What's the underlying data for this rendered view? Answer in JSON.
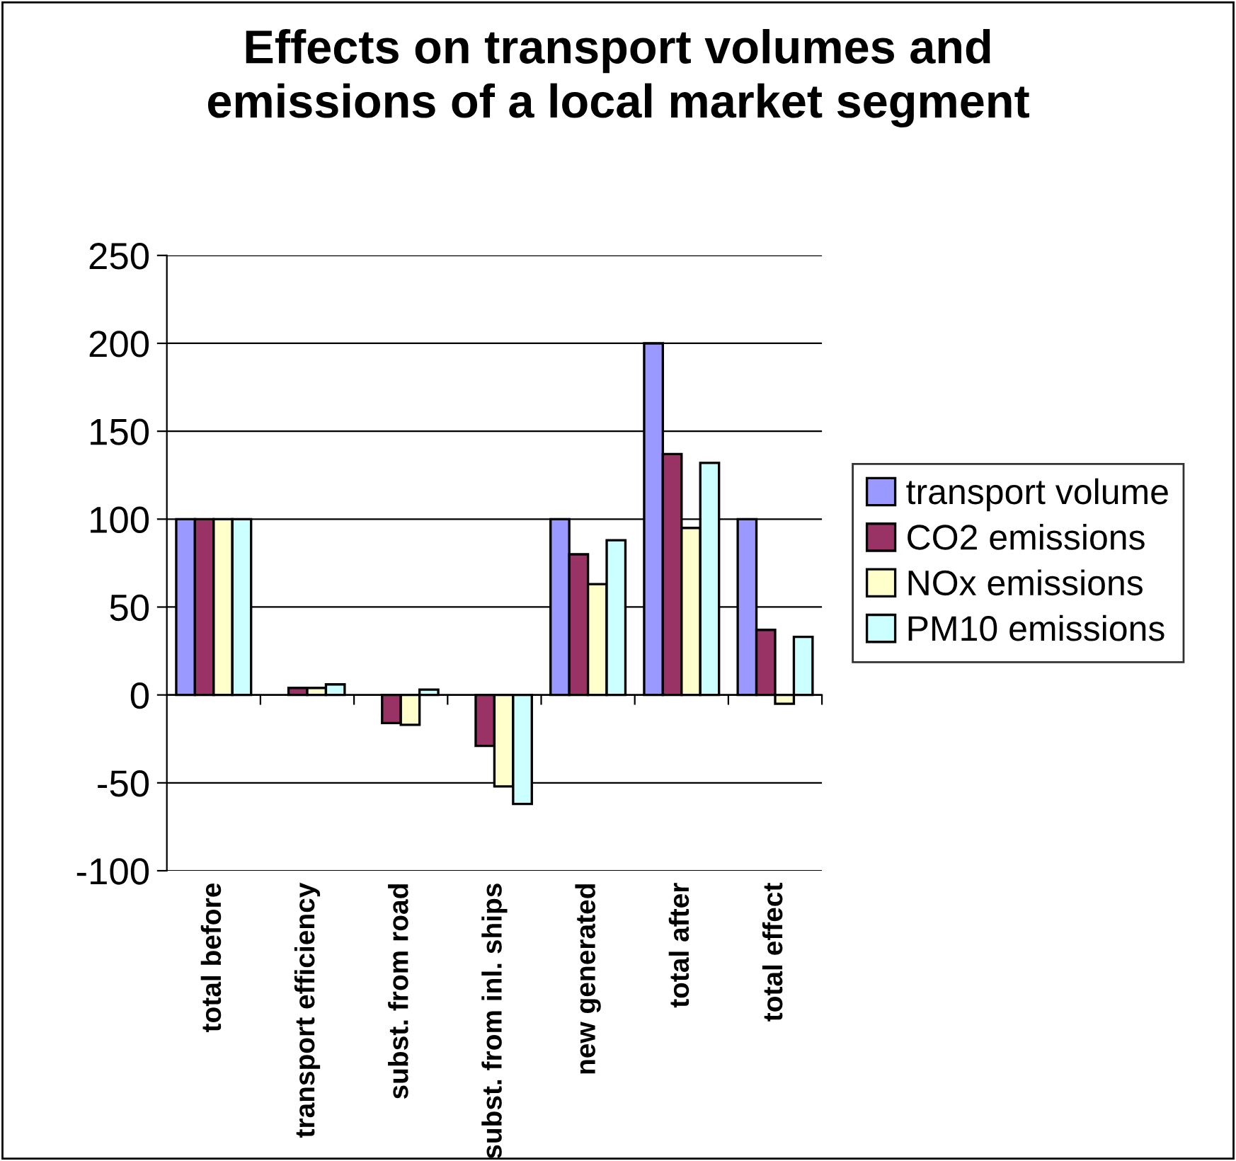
{
  "chart_data": {
    "type": "bar",
    "title": "Effects on transport volumes and\nemissions of a local market segment",
    "categories": [
      "total before",
      "transport efficiency",
      "subst. from road",
      "subst. from inl. ships",
      "new generated",
      "total after",
      "total effect"
    ],
    "series": [
      {
        "name": "transport volume",
        "color": "#9999ff",
        "values": [
          100,
          null,
          null,
          null,
          100,
          200,
          100
        ]
      },
      {
        "name": "CO2 emissions",
        "color": "#993366",
        "values": [
          100,
          4,
          -16,
          -29,
          80,
          137,
          37
        ]
      },
      {
        "name": "NOx emissions",
        "color": "#ffffcc",
        "values": [
          100,
          4,
          -17,
          -52,
          63,
          95,
          -5
        ]
      },
      {
        "name": "PM10 emissions",
        "color": "#ccffff",
        "values": [
          100,
          6,
          3,
          -62,
          88,
          132,
          33
        ]
      }
    ],
    "ylim": [
      -100,
      250
    ],
    "yticks": [
      -100,
      -50,
      0,
      50,
      100,
      150,
      200,
      250
    ],
    "grid": "y",
    "legend": "right"
  }
}
